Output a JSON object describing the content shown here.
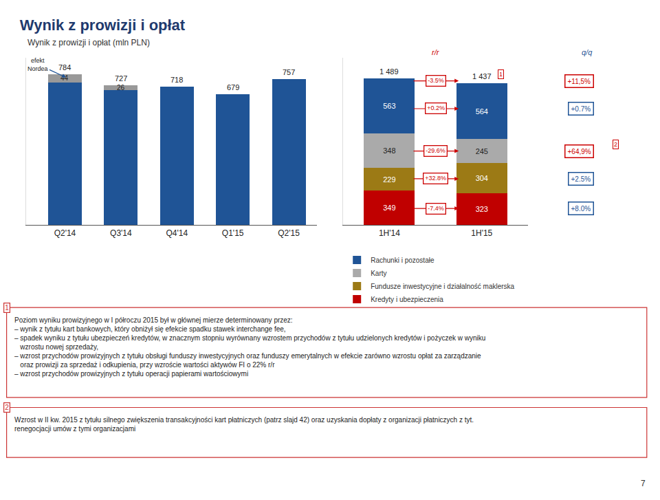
{
  "chart_data": [
    {
      "type": "bar",
      "title": "Wynik z prowizji i opłat",
      "subtitle": "Wynik z prowizji i opłat (mln PLN)",
      "categories": [
        "Q2'14",
        "Q3'14",
        "Q4'14",
        "Q1'15",
        "Q2'15"
      ],
      "stacked": true,
      "series": [
        {
          "color": "#1f5496",
          "values": [
            740,
            701,
            718,
            679,
            757
          ],
          "data_labels": false
        },
        {
          "color": "#999999",
          "values": [
            44,
            26,
            0,
            0,
            0
          ],
          "data_labels": true
        }
      ],
      "totals": [
        784,
        727,
        718,
        679,
        757
      ],
      "ylim": [
        0,
        870
      ],
      "tick_labels": "x",
      "grid": false,
      "annotations": [
        {
          "text": "efekt\nNordea",
          "category": "Q2'14"
        }
      ],
      "notes": [
        {
          "marker": "1",
          "text": "Poziom wyniku prowizyjnego w I półroczu 2015 był w głównej mierze determinowany przez:\n– wynik z tytułu kart bankowych, który obniżył się efekcie spadku stawek interchange fee,\n– spadek wyniku z tytułu ubezpieczeń kredytów, w znacznym stopniu wyrównany wzrostem przychodów z tytułu udzielonych kredytów i pożyczek w wyniku\n   wzrostu nowej sprzedaży,\n– wzrost przychodów prowizyjnych z tytułu obsługi funduszy inwestycyjnych oraz funduszy emerytalnych w efekcie zarówno wzrostu opłat za zarządzanie\n   oraz prowizji za sprzedaż i odkupienia, przy wzroście wartości aktywów FI o 22% r/r\n– wzrost przychodów prowizyjnych z tytułu operacji papierami wartościowymi"
        },
        {
          "marker": "2",
          "text": "Wzrost w II kw. 2015 z tytułu silnego zwiększenia transakcyjności kart płatniczych (patrz slajd 42) oraz uzyskania dopłaty z organizacji płatniczych z tyt.\nrenegocjacji umów z tymi organizacjami"
        }
      ],
      "page_number": "7"
    },
    {
      "type": "bar",
      "categories": [
        "1H'14",
        "1H'15"
      ],
      "stacked": true,
      "series": [
        {
          "name": "Kredyty i ubezpieczenia",
          "color": "#c00000",
          "values": [
            349,
            323
          ]
        },
        {
          "name": "Fundusze inwestycyjne i działalność maklerska",
          "color": "#9c7a15",
          "values": [
            229,
            304
          ]
        },
        {
          "name": "Karty",
          "color": "#aaaaaa",
          "values": [
            348,
            245
          ]
        },
        {
          "name": "Rachunki i pozostałe",
          "color": "#1f5496",
          "values": [
            563,
            564
          ]
        }
      ],
      "data_labels": true,
      "totals": [
        1489,
        1437
      ],
      "total_labels": [
        "1 489",
        "1 437"
      ],
      "ylim": [
        0,
        1700
      ],
      "tick_labels": "x",
      "grid": false,
      "legend": "bottom",
      "change_labels": [
        {
          "title": "r/r",
          "color": "#cc0000",
          "labels": [
            "-3.5%",
            "+0.2%",
            "-29.6%",
            "+32.8%",
            "-7.4%"
          ]
        },
        {
          "title": "q/q",
          "color": "#1f5496",
          "labels": [
            "+11,5%",
            "+0.7%",
            "+64,9%",
            "+2.5%",
            "+8.0%"
          ],
          "colors": [
            "#cc0000",
            "#1f5496",
            "#cc0000",
            "#1f5496",
            "#1f5496"
          ]
        }
      ]
    }
  ]
}
